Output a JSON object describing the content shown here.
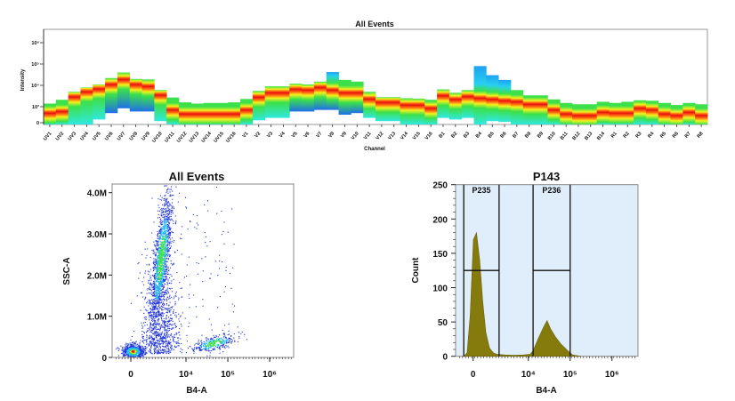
{
  "chart_data": [
    {
      "type": "heatmap",
      "title": "All Events",
      "xlabel": "Channel",
      "ylabel": "Intensity",
      "y_scale": "biexponential",
      "y_ticks": [
        "0",
        "10³",
        "10⁴",
        "10⁵",
        "10⁶"
      ],
      "y_tick_values": [
        0,
        1000,
        10000,
        100000,
        1000000
      ],
      "grid": false,
      "colormap": [
        "#1f4fe8",
        "#1fa0f0",
        "#27e8f0",
        "#3be04a",
        "#f2f21e",
        "#ff9a10",
        "#e81010"
      ],
      "channels": [
        {
          "name": "UV1",
          "top": 1400,
          "median": 600,
          "bottom": 0
        },
        {
          "name": "UV2",
          "top": 2100,
          "median": 700,
          "bottom": 0
        },
        {
          "name": "UV3",
          "top": 5000,
          "median": 2900,
          "bottom": 0
        },
        {
          "name": "UV4",
          "top": 8000,
          "median": 5000,
          "bottom": 0
        },
        {
          "name": "UV5",
          "top": 11000,
          "median": 6800,
          "bottom": 200
        },
        {
          "name": "UV6",
          "top": 22000,
          "median": 11000,
          "bottom": 600
        },
        {
          "name": "UV7",
          "top": 40000,
          "median": 19000,
          "bottom": 900
        },
        {
          "name": "UV8",
          "top": 20000,
          "median": 11000,
          "bottom": 700
        },
        {
          "name": "UV9",
          "top": 19000,
          "median": 9000,
          "bottom": 700
        },
        {
          "name": "UV10",
          "top": 6000,
          "median": 3500,
          "bottom": 100
        },
        {
          "name": "UV11",
          "top": 2700,
          "median": 800,
          "bottom": 0
        },
        {
          "name": "UV12",
          "top": 1600,
          "median": 550,
          "bottom": 0
        },
        {
          "name": "UV13",
          "top": 1400,
          "median": 550,
          "bottom": 0
        },
        {
          "name": "UV14",
          "top": 1500,
          "median": 550,
          "bottom": 0
        },
        {
          "name": "UV15",
          "top": 1500,
          "median": 550,
          "bottom": 0
        },
        {
          "name": "UV16",
          "top": 1600,
          "median": 550,
          "bottom": 0
        },
        {
          "name": "V1",
          "top": 2300,
          "median": 800,
          "bottom": 0
        },
        {
          "name": "V2",
          "top": 5500,
          "median": 2800,
          "bottom": 150
        },
        {
          "name": "V3",
          "top": 9000,
          "median": 4500,
          "bottom": 300
        },
        {
          "name": "V4",
          "top": 9000,
          "median": 4500,
          "bottom": 300
        },
        {
          "name": "V5",
          "top": 12000,
          "median": 6500,
          "bottom": 700
        },
        {
          "name": "V6",
          "top": 11000,
          "median": 6000,
          "bottom": 700
        },
        {
          "name": "V7",
          "top": 15000,
          "median": 8000,
          "bottom": 800
        },
        {
          "name": "V8",
          "top": 42000,
          "median": 6000,
          "bottom": 800
        },
        {
          "name": "V9",
          "top": 18000,
          "median": 4500,
          "bottom": 500
        },
        {
          "name": "V10",
          "top": 15000,
          "median": 4500,
          "bottom": 600
        },
        {
          "name": "V11",
          "top": 5000,
          "median": 2300,
          "bottom": 300
        },
        {
          "name": "V12",
          "top": 2800,
          "median": 1600,
          "bottom": 100
        },
        {
          "name": "V13",
          "top": 2800,
          "median": 1600,
          "bottom": 100
        },
        {
          "name": "V14",
          "top": 2500,
          "median": 1200,
          "bottom": 0
        },
        {
          "name": "V15",
          "top": 2400,
          "median": 1200,
          "bottom": 0
        },
        {
          "name": "V16",
          "top": 2100,
          "median": 900,
          "bottom": 0
        },
        {
          "name": "B1",
          "top": 6500,
          "median": 3300,
          "bottom": 300
        },
        {
          "name": "B2",
          "top": 4500,
          "median": 2200,
          "bottom": 200
        },
        {
          "name": "B3",
          "top": 6000,
          "median": 3000,
          "bottom": 300
        },
        {
          "name": "B4",
          "top": 80000,
          "median": 2500,
          "bottom": 0
        },
        {
          "name": "B5",
          "top": 30000,
          "median": 2200,
          "bottom": 100
        },
        {
          "name": "B6",
          "top": 18000,
          "median": 1900,
          "bottom": 50
        },
        {
          "name": "B7",
          "top": 6000,
          "median": 1700,
          "bottom": 0
        },
        {
          "name": "B8",
          "top": 3400,
          "median": 1300,
          "bottom": 0
        },
        {
          "name": "B9",
          "top": 3400,
          "median": 1300,
          "bottom": 0
        },
        {
          "name": "B10",
          "top": 2200,
          "median": 800,
          "bottom": 0
        },
        {
          "name": "B11",
          "top": 1500,
          "median": 550,
          "bottom": 0
        },
        {
          "name": "B12",
          "top": 1300,
          "median": 450,
          "bottom": 0
        },
        {
          "name": "B13",
          "top": 1300,
          "median": 450,
          "bottom": 0
        },
        {
          "name": "B14",
          "top": 1700,
          "median": 650,
          "bottom": 0
        },
        {
          "name": "R1",
          "top": 1500,
          "median": 600,
          "bottom": 0
        },
        {
          "name": "R2",
          "top": 1700,
          "median": 600,
          "bottom": 0
        },
        {
          "name": "R3",
          "top": 2000,
          "median": 900,
          "bottom": 0
        },
        {
          "name": "R4",
          "top": 1900,
          "median": 800,
          "bottom": 0
        },
        {
          "name": "R5",
          "top": 1500,
          "median": 550,
          "bottom": 0
        },
        {
          "name": "R6",
          "top": 1200,
          "median": 450,
          "bottom": 0
        },
        {
          "name": "R7",
          "top": 1500,
          "median": 650,
          "bottom": 0
        },
        {
          "name": "R8",
          "top": 1300,
          "median": 450,
          "bottom": 0
        }
      ]
    },
    {
      "type": "scatter",
      "title": "All Events",
      "xlabel": "B4-A",
      "ylabel": "SSC-A",
      "x_scale": "biexponential",
      "x_ticks": [
        "0",
        "10⁴",
        "10⁵",
        "10⁶"
      ],
      "y_ticks": [
        "0",
        "1.0M",
        "2.0M",
        "3.0M",
        "4.0M"
      ],
      "y_tick_values": [
        0,
        1000000,
        2000000,
        3000000,
        4000000
      ],
      "ylim": [
        0,
        4200000
      ],
      "density_colors": [
        "#1a2fd8",
        "#22b8f0",
        "#3be04a",
        "#f2f21e",
        "#e81010"
      ],
      "populations": [
        {
          "b4a_median": 150,
          "ssc_median": 150000,
          "events": 700
        },
        {
          "b4a_median": 2500,
          "ssc_median": 2400000,
          "events": 1500
        },
        {
          "b4a_median": 45000,
          "ssc_median": 350000,
          "events": 350
        }
      ]
    },
    {
      "type": "area",
      "title": "P143",
      "xlabel": "B4-A",
      "ylabel": "Count",
      "x_scale": "biexponential",
      "x_ticks": [
        "0",
        "10⁴",
        "10⁵",
        "10⁶"
      ],
      "y_ticks": [
        "0",
        "50",
        "100",
        "150",
        "200",
        "250"
      ],
      "y_tick_values": [
        0,
        50,
        100,
        150,
        200,
        250
      ],
      "ylim": [
        0,
        250
      ],
      "fill_color": "#857a0c",
      "background": "#dfeefa",
      "points": [
        [
          -690,
          0
        ],
        [
          -450,
          5
        ],
        [
          -220,
          60
        ],
        [
          20,
          170
        ],
        [
          250,
          180
        ],
        [
          490,
          140
        ],
        [
          720,
          80
        ],
        [
          950,
          35
        ],
        [
          1180,
          12
        ],
        [
          1450,
          5
        ],
        [
          1750,
          3
        ],
        [
          2800,
          2
        ],
        [
          4600,
          1.5
        ],
        [
          7500,
          2
        ],
        [
          11000,
          3
        ],
        [
          13000,
          8
        ],
        [
          17000,
          25
        ],
        [
          23000,
          42
        ],
        [
          28000,
          52
        ],
        [
          34000,
          40
        ],
        [
          45000,
          28
        ],
        [
          60000,
          18
        ],
        [
          88000,
          8
        ],
        [
          115000,
          2
        ],
        [
          180000,
          0
        ]
      ],
      "gates": [
        {
          "label": "P235",
          "from": -700,
          "to": 2000,
          "level": 125
        },
        {
          "label": "P236",
          "from": 13000,
          "to": 100000,
          "level": 125
        }
      ]
    }
  ]
}
